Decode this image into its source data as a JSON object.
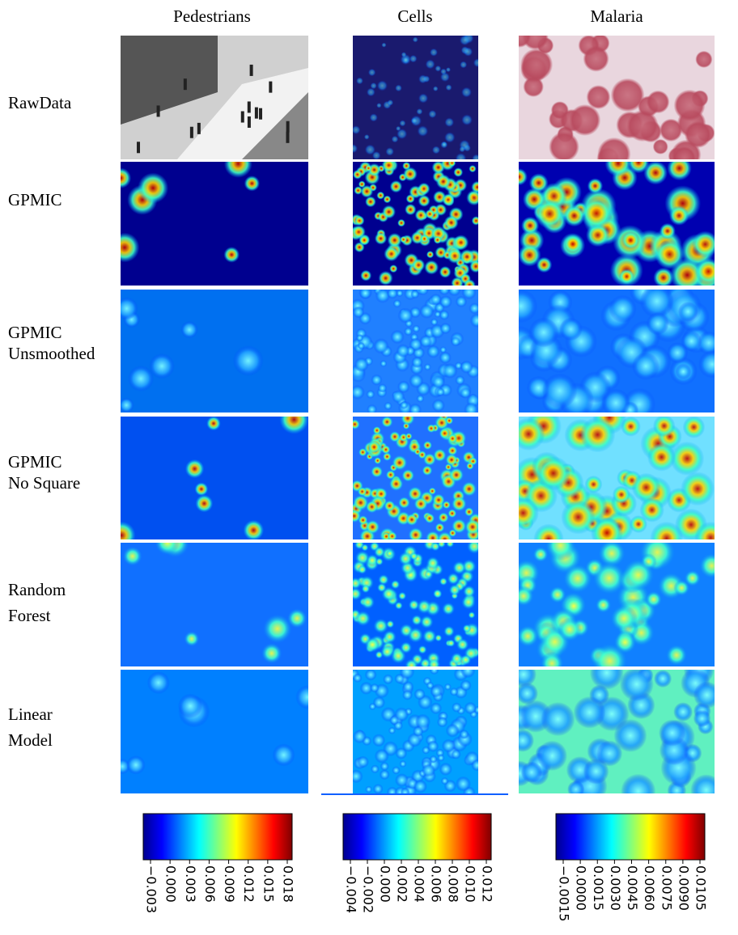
{
  "columns": [
    "Pedestrians",
    "Cells",
    "Malaria"
  ],
  "rows": [
    "RawData",
    "GPMIC",
    "GPMIC Unsmoothed",
    "GPMIC No Square",
    "Random Forest",
    "Linear Model"
  ],
  "colorbars": [
    {
      "ticks": [
        "−0.003",
        "0.000",
        "0.003",
        "0.006",
        "0.009",
        "0.012",
        "0.015",
        "0.018"
      ]
    },
    {
      "ticks": [
        "−0.004",
        "−0.002",
        "0.000",
        "0.002",
        "0.004",
        "0.006",
        "0.008",
        "0.010",
        "0.012"
      ]
    },
    {
      "ticks": [
        "−0.0015",
        "0.0000",
        "0.0015",
        "0.0030",
        "0.0045",
        "0.0060",
        "0.0075",
        "0.0090",
        "0.0105"
      ]
    }
  ]
}
